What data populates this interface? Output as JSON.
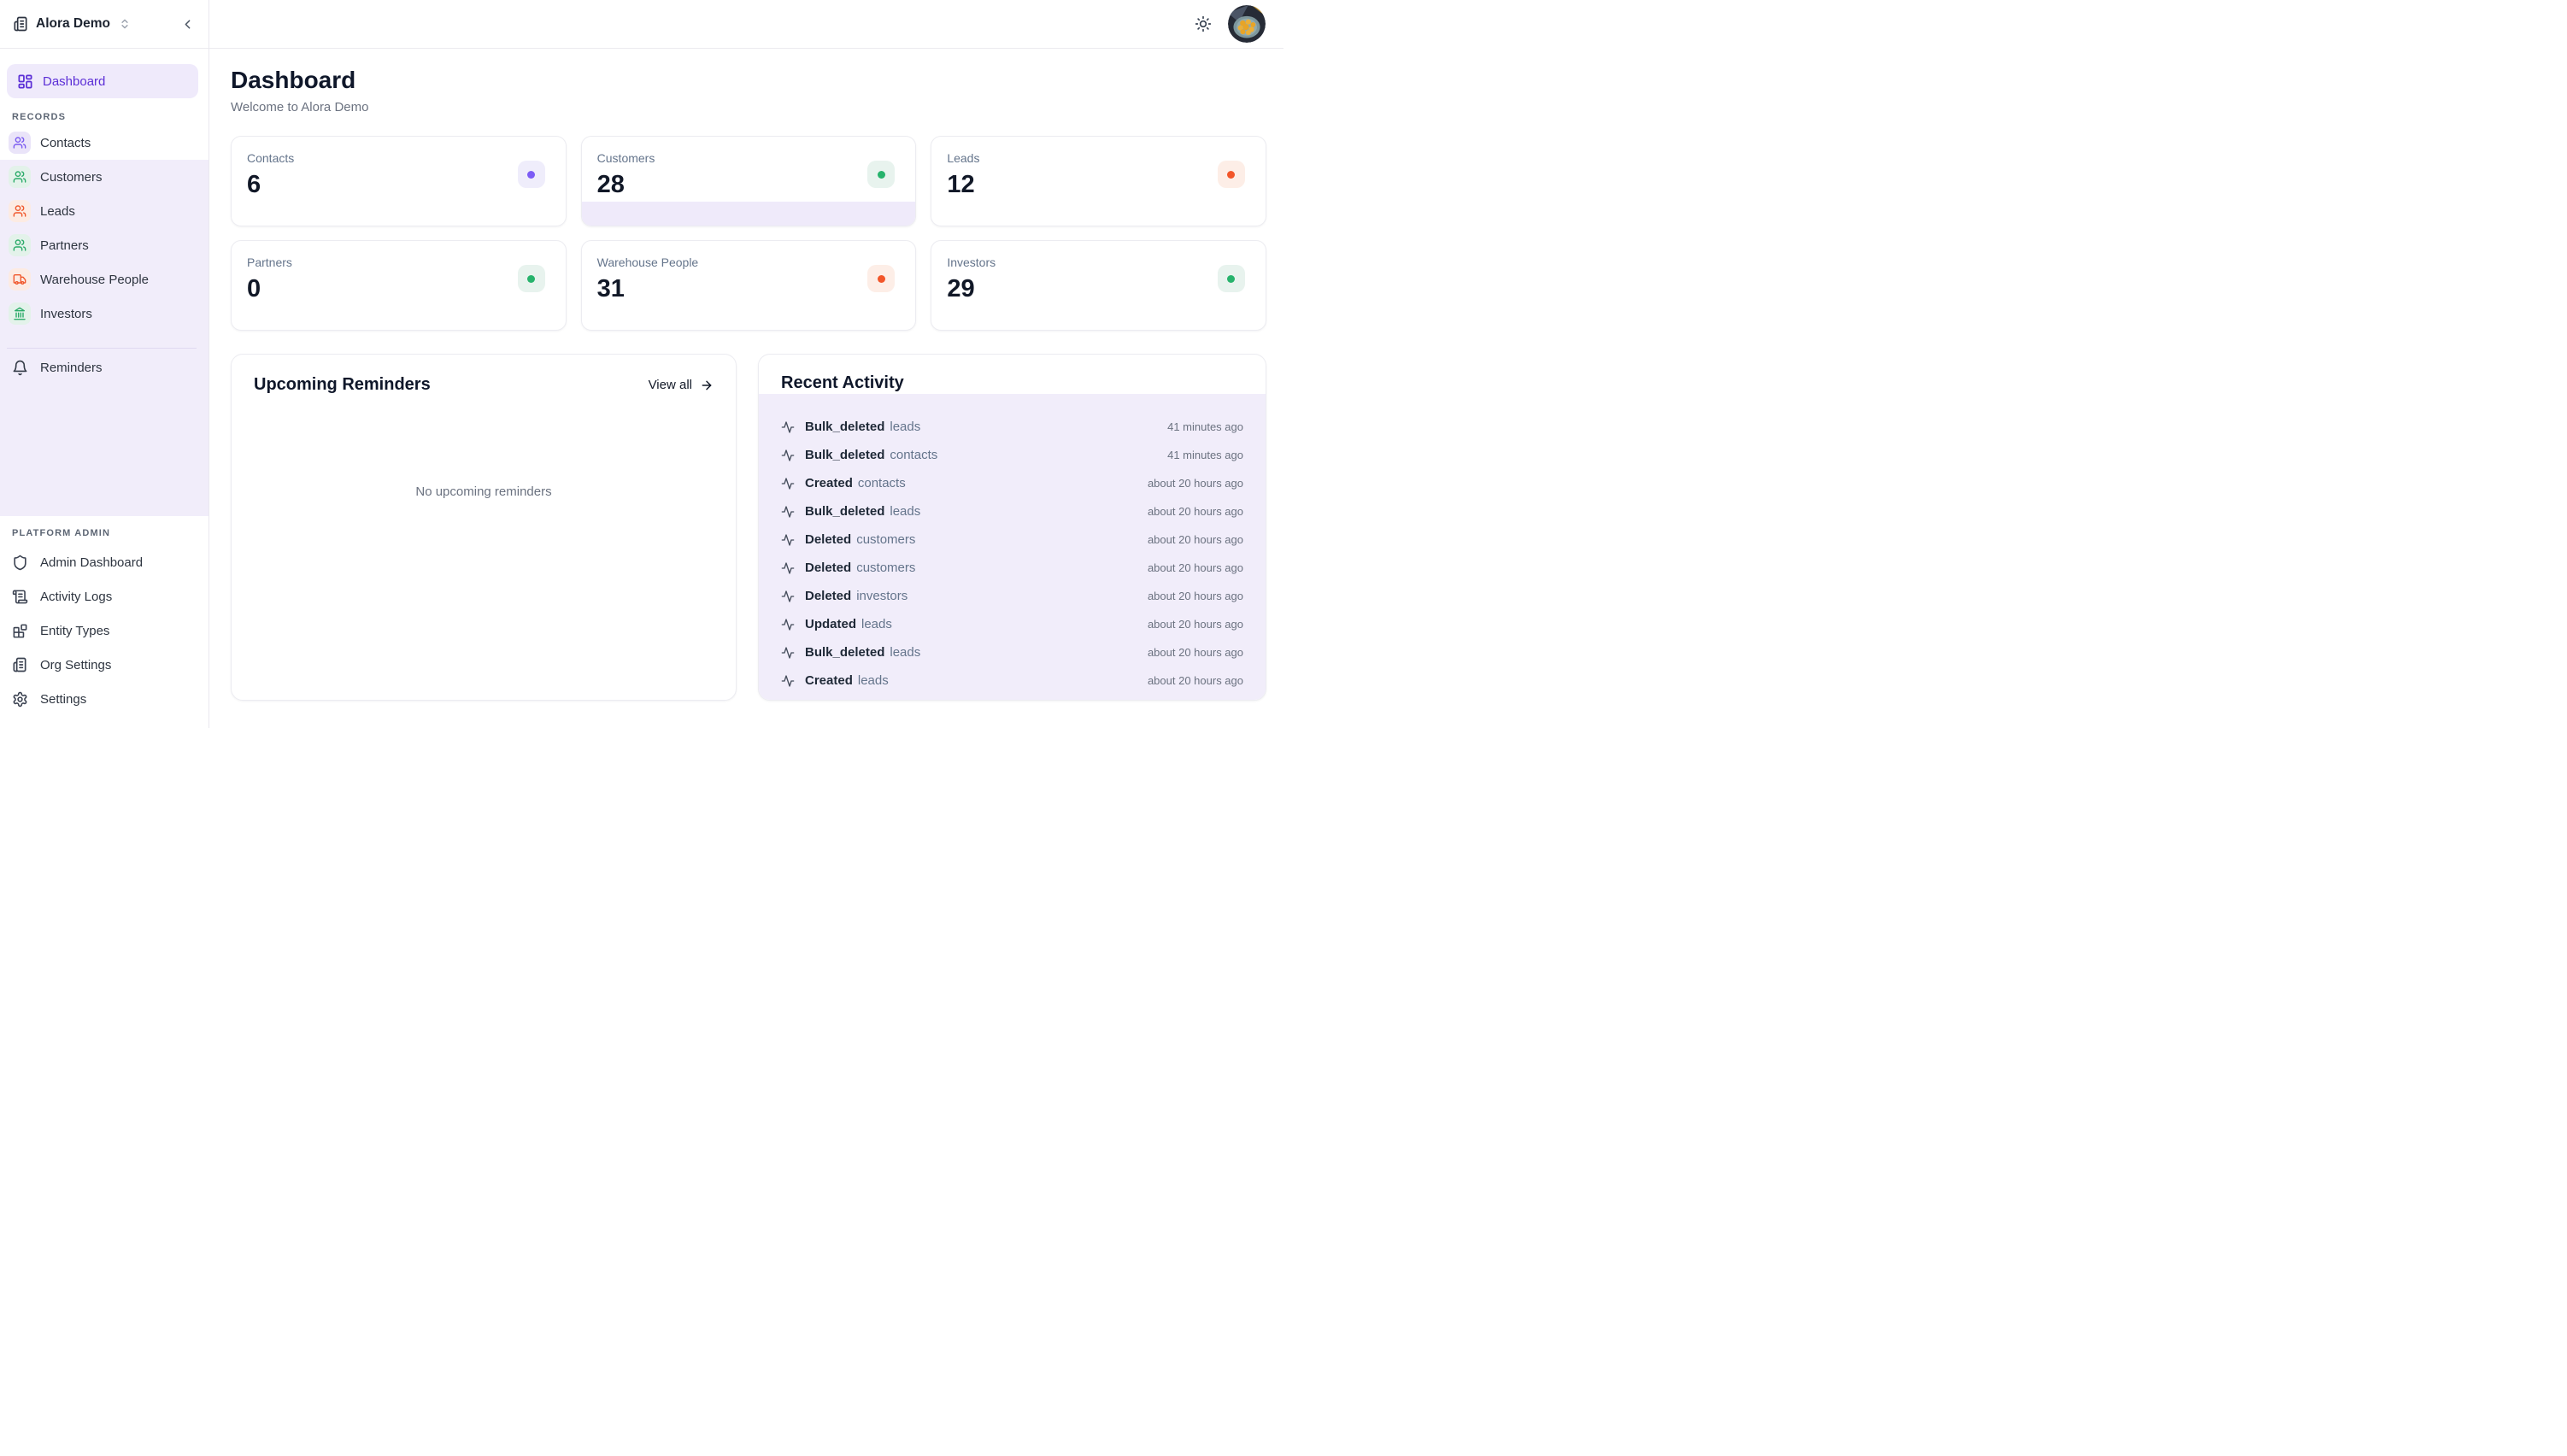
{
  "app": {
    "org_name": "Alora Demo"
  },
  "sidebar": {
    "dashboard_label": "Dashboard",
    "records_label": "RECORDS",
    "records_items": [
      {
        "label": "Contacts",
        "icon": "users",
        "color": "purple"
      },
      {
        "label": "Customers",
        "icon": "users",
        "color": "green"
      },
      {
        "label": "Leads",
        "icon": "users",
        "color": "orange"
      },
      {
        "label": "Partners",
        "icon": "users",
        "color": "green"
      },
      {
        "label": "Warehouse People",
        "icon": "truck",
        "color": "orange"
      },
      {
        "label": "Investors",
        "icon": "landmark",
        "color": "green"
      }
    ],
    "reminders_label": "Reminders",
    "platform_admin_label": "PLATFORM ADMIN",
    "admin_items": [
      {
        "label": "Admin Dashboard",
        "icon": "shield"
      },
      {
        "label": "Activity Logs",
        "icon": "scroll"
      },
      {
        "label": "Entity Types",
        "icon": "blocks"
      },
      {
        "label": "Org Settings",
        "icon": "building"
      },
      {
        "label": "Settings",
        "icon": "gear"
      }
    ]
  },
  "main": {
    "title": "Dashboard",
    "subtitle": "Welcome to Alora Demo",
    "stats": [
      {
        "label": "Contacts",
        "value": "6",
        "color": "purple",
        "highlight": false
      },
      {
        "label": "Customers",
        "value": "28",
        "color": "green",
        "highlight": true
      },
      {
        "label": "Leads",
        "value": "12",
        "color": "orange",
        "highlight": false
      },
      {
        "label": "Partners",
        "value": "0",
        "color": "green",
        "highlight": false
      },
      {
        "label": "Warehouse People",
        "value": "31",
        "color": "orange",
        "highlight": false
      },
      {
        "label": "Investors",
        "value": "29",
        "color": "green",
        "highlight": false
      }
    ],
    "reminders_panel": {
      "title": "Upcoming Reminders",
      "view_all_label": "View all",
      "empty_text": "No upcoming reminders"
    },
    "activity_panel": {
      "title": "Recent Activity",
      "items": [
        {
          "action": "Bulk_deleted",
          "entity": "leads",
          "time": "41 minutes ago"
        },
        {
          "action": "Bulk_deleted",
          "entity": "contacts",
          "time": "41 minutes ago"
        },
        {
          "action": "Created",
          "entity": "contacts",
          "time": "about 20 hours ago"
        },
        {
          "action": "Bulk_deleted",
          "entity": "leads",
          "time": "about 20 hours ago"
        },
        {
          "action": "Deleted",
          "entity": "customers",
          "time": "about 20 hours ago"
        },
        {
          "action": "Deleted",
          "entity": "customers",
          "time": "about 20 hours ago"
        },
        {
          "action": "Deleted",
          "entity": "investors",
          "time": "about 20 hours ago"
        },
        {
          "action": "Updated",
          "entity": "leads",
          "time": "about 20 hours ago"
        },
        {
          "action": "Bulk_deleted",
          "entity": "leads",
          "time": "about 20 hours ago"
        },
        {
          "action": "Created",
          "entity": "leads",
          "time": "about 20 hours ago"
        }
      ]
    }
  },
  "colors": {
    "accent_purple": "#5b2ed6",
    "icon_purple": "#7c5cf5",
    "icon_green": "#27b36c",
    "icon_orange": "#f2562a",
    "lavender_bg": "#f1edfa"
  }
}
